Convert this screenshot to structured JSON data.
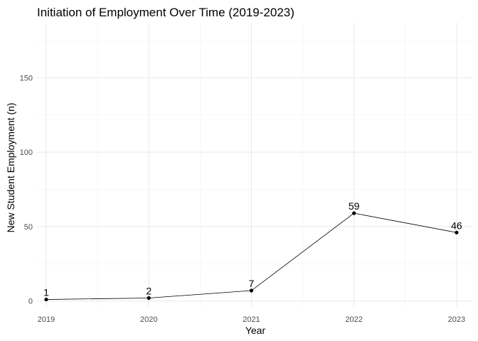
{
  "chart_data": {
    "type": "line",
    "title": "Initiation of Employment Over Time (2019-2023)",
    "xlabel": "Year",
    "ylabel": "New Student Employment (n)",
    "x": [
      2019,
      2020,
      2021,
      2022,
      2023
    ],
    "x_tick_labels": [
      "2019",
      "2020",
      "2021",
      "2022",
      "2023"
    ],
    "values": [
      1,
      2,
      7,
      59,
      46
    ],
    "data_labels": [
      "1",
      "2",
      "7",
      "59",
      "46"
    ],
    "ylim": [
      -3.5,
      187
    ],
    "xlim": [
      2018.91,
      2023.16
    ],
    "y_ticks": [
      0,
      50,
      100,
      150
    ],
    "y_tick_labels": [
      "0",
      "50",
      "100",
      "150"
    ],
    "y_minor_ticks": [
      25,
      75,
      125,
      175
    ],
    "x_minor_ticks": [
      2019.5,
      2020.5,
      2021.5,
      2022.5
    ],
    "grid": true,
    "colors": {
      "line": "#000000",
      "point": "#000000",
      "grid_major": "#ebebeb",
      "grid_minor": "#f2f2f2",
      "background": "#ffffff"
    }
  }
}
